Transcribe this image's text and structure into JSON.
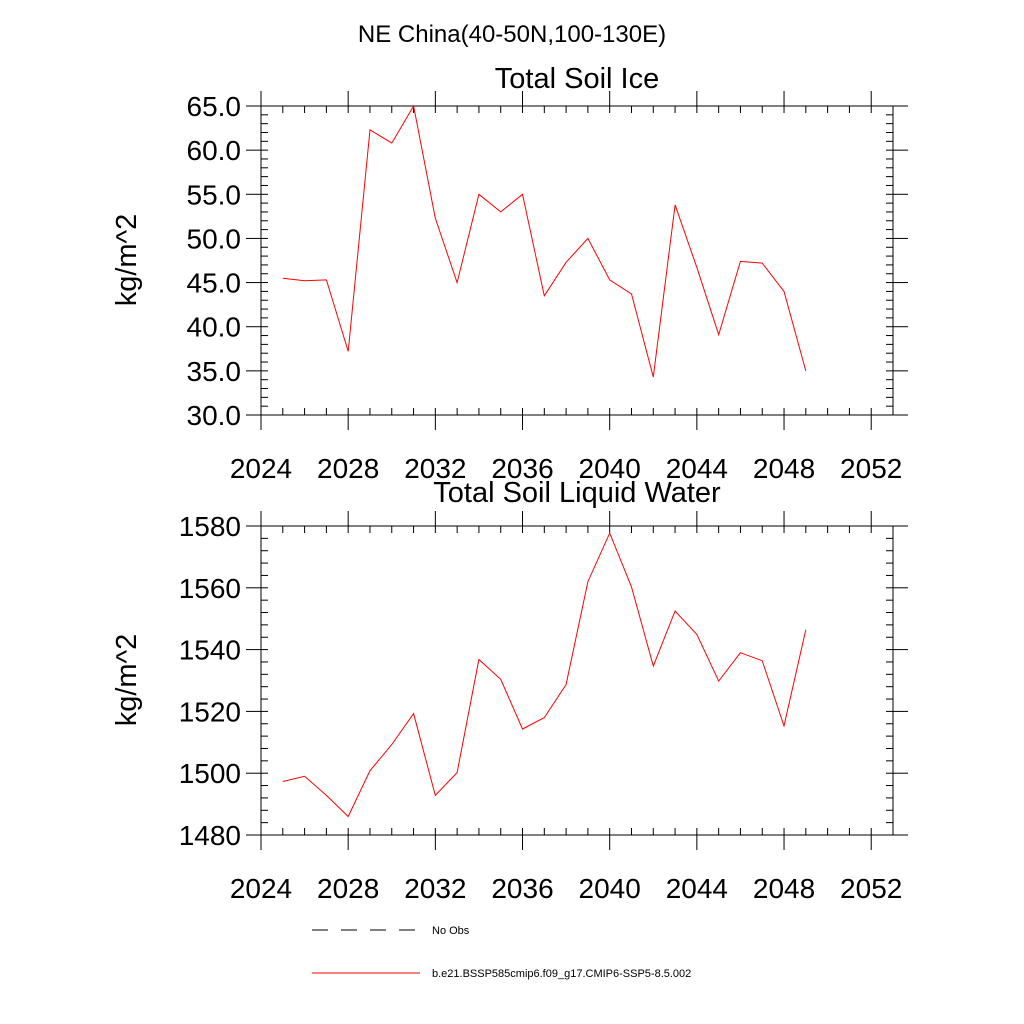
{
  "figure_title": "NE China(40-50N,100-130E)",
  "legend": {
    "entries": [
      {
        "label": "No Obs",
        "style": "dashed",
        "color": "#000000"
      },
      {
        "label": "b.e21.BSSP585cmip6.f09_g17.CMIP6-SSP5-8.5.002",
        "style": "solid",
        "color": "#ff0000"
      }
    ]
  },
  "chart_data": [
    {
      "type": "line",
      "title": "Total Soil Ice",
      "xlabel": "",
      "ylabel": "kg/m^2",
      "xlim": [
        2024,
        2053
      ],
      "ylim": [
        30,
        65
      ],
      "xticks": [
        2024,
        2028,
        2032,
        2036,
        2040,
        2044,
        2048,
        2052
      ],
      "xtick_labels": [
        "2024",
        "2028",
        "2032",
        "2036",
        "2040",
        "2044",
        "2048",
        "2052"
      ],
      "yticks": [
        30,
        35,
        40,
        45,
        50,
        55,
        60,
        65
      ],
      "ytick_labels": [
        "30.0",
        "35.0",
        "40.0",
        "45.0",
        "50.0",
        "55.0",
        "60.0",
        "65.0"
      ],
      "y_minor_step": 1,
      "x_minor_step": 1,
      "grid": false,
      "series": [
        {
          "name": "b.e21.BSSP585cmip6.f09_g17.CMIP6-SSP5-8.5.002",
          "color": "#ff0000",
          "x": [
            2025,
            2026,
            2027,
            2028,
            2029,
            2030,
            2031,
            2032,
            2033,
            2034,
            2035,
            2036,
            2037,
            2038,
            2039,
            2040,
            2041,
            2042,
            2043,
            2044,
            2045,
            2046,
            2047,
            2048,
            2049
          ],
          "values": [
            45.5,
            45.2,
            45.3,
            37.2,
            62.3,
            60.8,
            65.0,
            52.3,
            45.0,
            55.0,
            53.0,
            55.0,
            43.5,
            47.3,
            50.0,
            45.3,
            43.7,
            34.3,
            53.8,
            46.7,
            39.1,
            47.4,
            47.2,
            44.0,
            35.0
          ]
        }
      ]
    },
    {
      "type": "line",
      "title": "Total Soil Liquid Water",
      "xlabel": "",
      "ylabel": "kg/m^2",
      "xlim": [
        2024,
        2053
      ],
      "ylim": [
        1480,
        1580
      ],
      "xticks": [
        2024,
        2028,
        2032,
        2036,
        2040,
        2044,
        2048,
        2052
      ],
      "xtick_labels": [
        "2024",
        "2028",
        "2032",
        "2036",
        "2040",
        "2044",
        "2048",
        "2052"
      ],
      "yticks": [
        1480,
        1500,
        1520,
        1540,
        1560,
        1580
      ],
      "ytick_labels": [
        "1480",
        "1500",
        "1520",
        "1540",
        "1560",
        "1580"
      ],
      "y_minor_step": 4,
      "x_minor_step": 1,
      "grid": false,
      "series": [
        {
          "name": "b.e21.BSSP585cmip6.f09_g17.CMIP6-SSP5-8.5.002",
          "color": "#ff0000",
          "x": [
            2025,
            2026,
            2027,
            2028,
            2029,
            2030,
            2031,
            2032,
            2033,
            2034,
            2035,
            2036,
            2037,
            2038,
            2039,
            2040,
            2041,
            2042,
            2043,
            2044,
            2045,
            2046,
            2047,
            2048,
            2049
          ],
          "values": [
            1497.3,
            1499.0,
            1492.8,
            1486.0,
            1500.8,
            1509.3,
            1519.3,
            1492.8,
            1500.2,
            1536.8,
            1530.4,
            1514.3,
            1518.0,
            1528.7,
            1562.0,
            1577.7,
            1560.3,
            1534.7,
            1552.5,
            1544.9,
            1529.8,
            1539.0,
            1536.4,
            1515.3,
            1546.4
          ]
        }
      ]
    }
  ]
}
